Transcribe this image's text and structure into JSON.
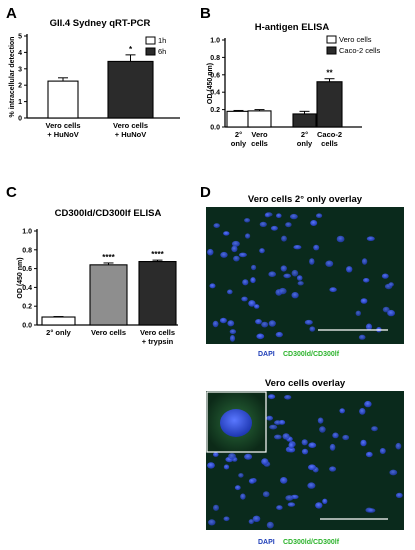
{
  "panels": {
    "A": "A",
    "B": "B",
    "C": "C",
    "D": "D"
  },
  "colors": {
    "white_bar": "#ffffff",
    "dark_bar": "#2b2b2b",
    "gray_bar": "#8e8e8e",
    "dapi": "#1f3fb8",
    "cd300": "#2bb32b",
    "micro_bg": "#0b2a1e",
    "nucleus": "#2f4fd8"
  },
  "chart_data": [
    {
      "id": "A",
      "type": "bar",
      "title": "GII.4 Sydney qRT-PCR",
      "ylabel": "% intracellular detection",
      "ylim": [
        0,
        5
      ],
      "yticks": [
        "0",
        "1",
        "2",
        "3",
        "4",
        "5"
      ],
      "categories": [
        "Vero cells + HuNoV",
        "Vero cells + HuNoV"
      ],
      "series": [
        {
          "name": "1h",
          "values": [
            2.25,
            null
          ],
          "errors": [
            0.2,
            null
          ],
          "color": "#ffffff"
        },
        {
          "name": "6h",
          "values": [
            null,
            3.45
          ],
          "errors": [
            null,
            0.4
          ],
          "color": "#2b2b2b"
        }
      ],
      "annotations": [
        "*"
      ],
      "legend": "top-right"
    },
    {
      "id": "B",
      "type": "bar",
      "title": "H-antigen ELISA",
      "ylabel": "OD (450 nm)",
      "ylim": [
        0,
        1.0
      ],
      "yticks": [
        "0.0",
        "0.2",
        "0.4",
        "0.6",
        "0.8",
        "1.0"
      ],
      "categories": [
        "2° only",
        "Vero cells",
        "2° only",
        "Caco-2 cells"
      ],
      "series": [
        {
          "name": "Vero cells",
          "values": [
            0.18,
            0.185,
            null,
            null
          ],
          "errors": [
            0.01,
            0.015,
            null,
            null
          ],
          "color": "#ffffff"
        },
        {
          "name": "Caco-2 cells",
          "values": [
            null,
            null,
            0.15,
            0.52
          ],
          "errors": [
            null,
            null,
            0.03,
            0.035
          ],
          "color": "#2b2b2b"
        }
      ],
      "annotations": [
        "**"
      ],
      "legend": "top-right"
    },
    {
      "id": "C",
      "type": "bar",
      "title": "CD300ld/CD300lf ELISA",
      "ylabel": "OD (450 nm)",
      "ylim": [
        0,
        1.0
      ],
      "yticks": [
        "0.0",
        "0.2",
        "0.4",
        "0.6",
        "0.8",
        "1.0"
      ],
      "categories": [
        "2° only",
        "Vero cells",
        "Vero cells + trypsin"
      ],
      "series": [
        {
          "name": "",
          "values": [
            0.085,
            0.64,
            0.675
          ],
          "errors": [
            0.005,
            0.02,
            0.015
          ],
          "colors": [
            "#ffffff",
            "#8e8e8e",
            "#2b2b2b"
          ]
        }
      ],
      "annotations": [
        "",
        "****",
        "****"
      ]
    }
  ],
  "micrographs": [
    {
      "title": "Vero cells 2° only overlay",
      "caption_dapi": "DAPI",
      "caption_cd": "CD300ld/CD300lf"
    },
    {
      "title": "Vero cells overlay",
      "caption_dapi": "DAPI",
      "caption_cd": "CD300ld/CD300lf"
    }
  ]
}
